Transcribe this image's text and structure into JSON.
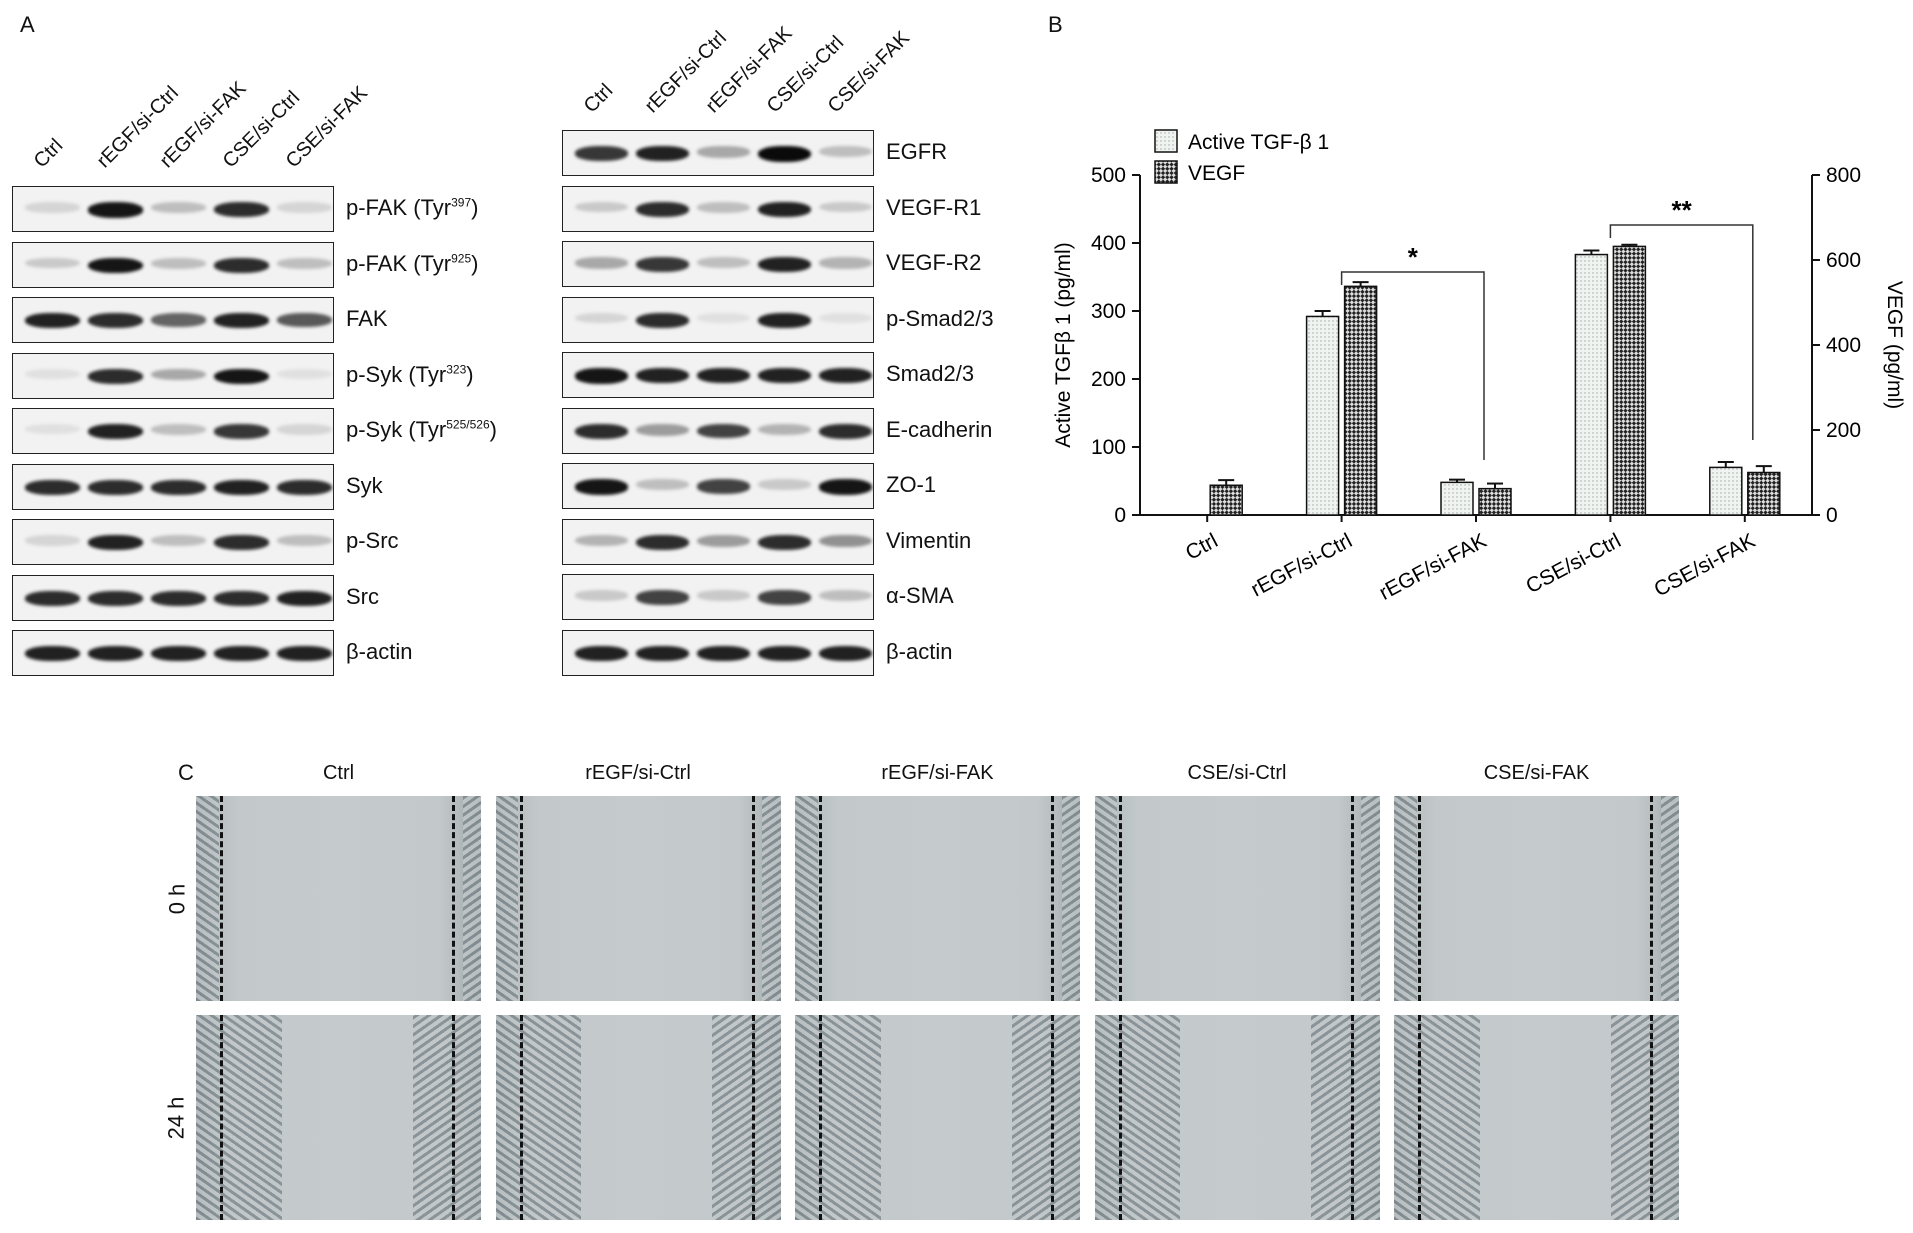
{
  "figure": {
    "panels": {
      "a": "A",
      "b": "B",
      "c": "C"
    }
  },
  "western_left": {
    "lanes": [
      "Ctrl",
      "rEGF/si-Ctrl",
      "rEGF/si-FAK",
      "CSE/si-Ctrl",
      "CSE/si-FAK"
    ],
    "rows": [
      {
        "label": "p-FAK (Tyr",
        "sup": "397",
        "tail": ")",
        "intensity": [
          0.1,
          0.95,
          0.2,
          0.85,
          0.1
        ]
      },
      {
        "label": "p-FAK (Tyr",
        "sup": "925",
        "tail": ")",
        "intensity": [
          0.15,
          0.95,
          0.2,
          0.85,
          0.2
        ]
      },
      {
        "label": "FAK",
        "sup": "",
        "tail": "",
        "intensity": [
          0.9,
          0.85,
          0.6,
          0.9,
          0.65
        ]
      },
      {
        "label": "p-Syk (Tyr",
        "sup": "323",
        "tail": ")",
        "intensity": [
          0.05,
          0.85,
          0.3,
          0.95,
          0.05
        ]
      },
      {
        "label": "p-Syk (Tyr",
        "sup": "525/526",
        "tail": ")",
        "intensity": [
          0.05,
          0.9,
          0.2,
          0.8,
          0.1
        ]
      },
      {
        "label": "Syk",
        "sup": "",
        "tail": "",
        "intensity": [
          0.85,
          0.85,
          0.85,
          0.9,
          0.85
        ]
      },
      {
        "label": "p-Src",
        "sup": "",
        "tail": "",
        "intensity": [
          0.1,
          0.9,
          0.2,
          0.85,
          0.2
        ]
      },
      {
        "label": "Src",
        "sup": "",
        "tail": "",
        "intensity": [
          0.85,
          0.85,
          0.85,
          0.85,
          0.9
        ]
      },
      {
        "label": "β-actin",
        "sup": "",
        "tail": "",
        "intensity": [
          0.9,
          0.9,
          0.9,
          0.9,
          0.9
        ]
      }
    ]
  },
  "western_right": {
    "lanes": [
      "Ctrl",
      "rEGF/si-Ctrl",
      "rEGF/si-FAK",
      "CSE/si-Ctrl",
      "CSE/si-FAK"
    ],
    "rows": [
      {
        "label": "EGFR",
        "intensity": [
          0.8,
          0.9,
          0.3,
          1.0,
          0.2
        ]
      },
      {
        "label": "VEGF-R1",
        "intensity": [
          0.15,
          0.85,
          0.2,
          0.9,
          0.15
        ]
      },
      {
        "label": "VEGF-R2",
        "intensity": [
          0.3,
          0.8,
          0.2,
          0.9,
          0.25
        ]
      },
      {
        "label": "p-Smad2/3",
        "intensity": [
          0.1,
          0.85,
          0.05,
          0.9,
          0.05
        ]
      },
      {
        "label": "Smad2/3",
        "intensity": [
          0.95,
          0.9,
          0.9,
          0.9,
          0.9
        ]
      },
      {
        "label": "E-cadherin",
        "intensity": [
          0.85,
          0.35,
          0.75,
          0.25,
          0.85
        ]
      },
      {
        "label": "ZO-1",
        "intensity": [
          0.95,
          0.2,
          0.75,
          0.15,
          0.95
        ]
      },
      {
        "label": "Vimentin",
        "intensity": [
          0.25,
          0.85,
          0.35,
          0.85,
          0.4
        ]
      },
      {
        "label": "α-SMA",
        "intensity": [
          0.15,
          0.75,
          0.15,
          0.75,
          0.2
        ]
      },
      {
        "label": "β-actin",
        "intensity": [
          0.9,
          0.9,
          0.9,
          0.9,
          0.9
        ]
      }
    ]
  },
  "chart_data": {
    "type": "bar",
    "categories": [
      "Ctrl",
      "rEGF/si-Ctrl",
      "rEGF/si-FAK",
      "CSE/si-Ctrl",
      "CSE/si-FAK"
    ],
    "series": [
      {
        "name": "Active TGF-β 1",
        "axis": "left",
        "values": [
          0,
          292,
          48,
          383,
          70
        ],
        "errors": [
          0,
          8,
          4,
          6,
          8
        ]
      },
      {
        "name": "VEGF",
        "axis": "right",
        "values": [
          70,
          538,
          62,
          632,
          100
        ],
        "errors": [
          12,
          10,
          12,
          4,
          15
        ]
      }
    ],
    "ylabel_left": "Active TGFβ 1 (pg/ml)",
    "ylabel_right": "VEGF (pg/ml)",
    "ylim_left": [
      0,
      500
    ],
    "ylim_right": [
      0,
      800
    ],
    "yticks_left": [
      "0",
      "100",
      "200",
      "300",
      "400",
      "500"
    ],
    "yticks_right": [
      "0",
      "200",
      "400",
      "600",
      "800"
    ],
    "legend_position": "top-left",
    "grid": false,
    "significance": [
      {
        "from": "rEGF/si-Ctrl",
        "to": "rEGF/si-FAK",
        "label": "*"
      },
      {
        "from": "CSE/si-Ctrl",
        "to": "CSE/si-FAK",
        "label": "**"
      }
    ]
  },
  "wound_healing": {
    "conditions": [
      "Ctrl",
      "rEGF/si-Ctrl",
      "rEGF/si-FAK",
      "CSE/si-Ctrl",
      "CSE/si-FAK"
    ],
    "times": [
      "0 h",
      "24 h"
    ]
  }
}
